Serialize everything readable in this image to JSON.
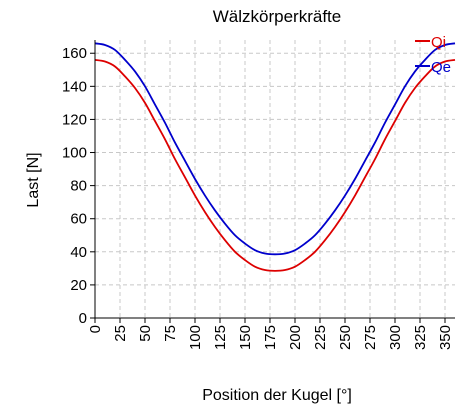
{
  "chart_data": {
    "type": "line",
    "title": "Wälzkörperkräfte",
    "xlabel": "Position der Kugel [°]",
    "ylabel": "Last [N]",
    "xlim": [
      0,
      360
    ],
    "ylim": [
      0,
      168
    ],
    "xticks": [
      0,
      25,
      50,
      75,
      100,
      125,
      150,
      175,
      200,
      225,
      250,
      275,
      300,
      325,
      350
    ],
    "yticks": [
      0,
      20,
      40,
      60,
      80,
      100,
      120,
      140,
      160
    ],
    "grid": true,
    "legend_position": "top-right",
    "x": [
      0,
      10,
      20,
      30,
      40,
      50,
      60,
      70,
      80,
      90,
      100,
      110,
      120,
      130,
      140,
      150,
      160,
      170,
      180,
      190,
      200,
      210,
      220,
      230,
      240,
      250,
      260,
      270,
      280,
      290,
      300,
      310,
      320,
      330,
      340,
      350,
      360
    ],
    "series": [
      {
        "name": "Qi",
        "color": "#dd0000",
        "values": [
          156,
          155,
          152,
          146,
          139,
          130,
          119,
          108,
          96,
          85,
          74,
          64,
          55,
          47,
          40,
          35,
          31,
          29,
          28.5,
          29,
          31,
          35,
          40,
          47,
          55,
          64,
          74,
          85,
          96,
          108,
          119,
          130,
          139,
          146,
          152,
          155,
          156
        ]
      },
      {
        "name": "Qe",
        "color": "#0000cc",
        "values": [
          166,
          165,
          162,
          156,
          149,
          140,
          129,
          118,
          106,
          95,
          84,
          74,
          65,
          57,
          50,
          45,
          41,
          39,
          38.5,
          39,
          41,
          45,
          50,
          57,
          65,
          74,
          84,
          95,
          106,
          118,
          129,
          140,
          149,
          156,
          162,
          165,
          166
        ]
      }
    ]
  }
}
